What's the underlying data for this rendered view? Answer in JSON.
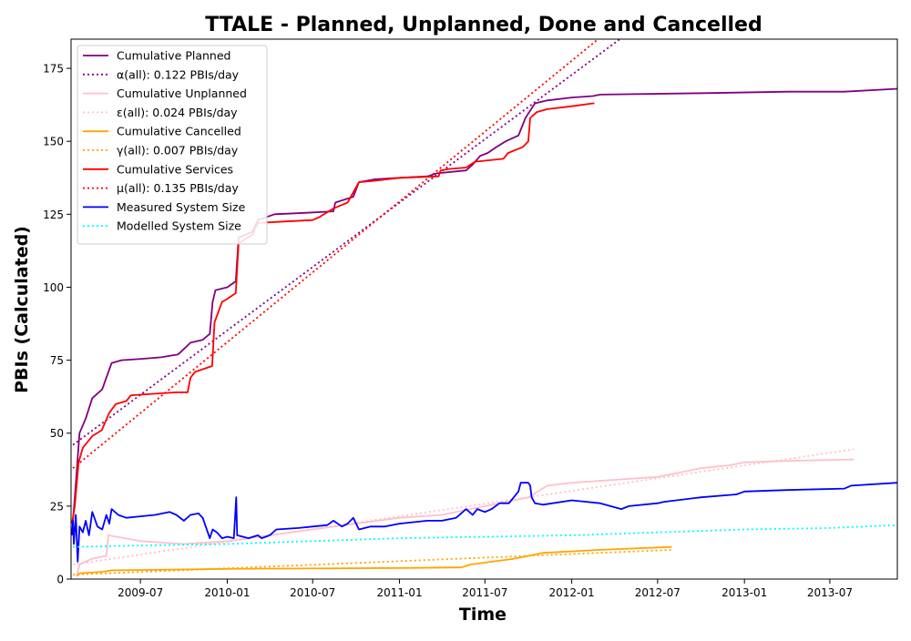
{
  "chart_data": {
    "type": "line",
    "title": "TTALE - Planned, Unplanned, Done  and Cancelled",
    "xlabel": "Time",
    "ylabel": "PBIs (Calculated)",
    "xlim": [
      "2009-02-04",
      "2013-11-21"
    ],
    "ylim": [
      0,
      185
    ],
    "x_ticks": [
      "2009-07",
      "2010-01",
      "2010-07",
      "2011-01",
      "2011-07",
      "2012-01",
      "2012-07",
      "2013-01",
      "2013-07"
    ],
    "y_ticks": [
      0,
      25,
      50,
      75,
      100,
      125,
      150,
      175
    ],
    "grid": false,
    "legend_position": "top-left",
    "series": [
      {
        "name": "Cumulative Planned",
        "color": "#800080",
        "style": "solid",
        "points": [
          [
            "2009-02-08",
            20
          ],
          [
            "2009-02-12",
            28
          ],
          [
            "2009-02-22",
            50
          ],
          [
            "2009-03-07",
            55
          ],
          [
            "2009-03-21",
            62
          ],
          [
            "2009-04-11",
            65
          ],
          [
            "2009-04-22",
            70
          ],
          [
            "2009-05-01",
            74
          ],
          [
            "2009-05-22",
            75
          ],
          [
            "2009-07-07",
            75.5
          ],
          [
            "2009-08-14",
            76
          ],
          [
            "2009-09-19",
            77
          ],
          [
            "2009-10-15",
            81
          ],
          [
            "2009-11-10",
            82
          ],
          [
            "2009-11-25",
            84
          ],
          [
            "2009-12-01",
            95
          ],
          [
            "2009-12-07",
            99
          ],
          [
            "2010-01-01",
            100
          ],
          [
            "2010-01-19",
            102
          ],
          [
            "2010-01-25",
            117
          ],
          [
            "2010-02-23",
            119
          ],
          [
            "2010-03-07",
            123
          ],
          [
            "2010-04-11",
            125
          ],
          [
            "2010-06-19",
            125.5
          ],
          [
            "2010-08-14",
            126
          ],
          [
            "2010-08-18",
            129
          ],
          [
            "2010-09-25",
            131
          ],
          [
            "2010-10-07",
            136
          ],
          [
            "2010-11-10",
            137
          ],
          [
            "2011-01-01",
            137.5
          ],
          [
            "2011-03-01",
            138
          ],
          [
            "2011-03-21",
            139
          ],
          [
            "2011-05-22",
            140
          ],
          [
            "2011-06-05",
            142
          ],
          [
            "2011-06-21",
            145
          ],
          [
            "2011-07-07",
            146
          ],
          [
            "2011-07-25",
            148
          ],
          [
            "2011-08-14",
            150
          ],
          [
            "2011-09-10",
            152
          ],
          [
            "2011-09-25",
            158
          ],
          [
            "2011-10-15",
            163
          ],
          [
            "2011-11-10",
            164
          ],
          [
            "2012-01-01",
            165
          ],
          [
            "2012-02-15",
            165.5
          ],
          [
            "2012-03-01",
            166
          ],
          [
            "2012-10-07",
            166.5
          ],
          [
            "2013-04-03",
            167
          ],
          [
            "2013-08-01",
            167
          ],
          [
            "2013-11-21",
            168
          ]
        ]
      },
      {
        "name": "α(all): 0.122 PBIs/day",
        "color": "#800080",
        "style": "dotted",
        "points": [
          [
            "2009-02-08",
            46
          ],
          [
            "2012-04-12",
            185
          ]
        ]
      },
      {
        "name": "Cumulative Unplanned",
        "color": "#ffc0cb",
        "style": "solid",
        "points": [
          [
            "2009-02-16",
            1
          ],
          [
            "2009-02-22",
            5
          ],
          [
            "2009-03-21",
            7
          ],
          [
            "2009-04-20",
            8
          ],
          [
            "2009-04-24",
            15
          ],
          [
            "2009-07-01",
            13
          ],
          [
            "2009-10-01",
            12
          ],
          [
            "2010-01-01",
            13
          ],
          [
            "2010-04-01",
            15
          ],
          [
            "2010-07-01",
            17
          ],
          [
            "2010-10-01",
            19
          ],
          [
            "2011-01-01",
            21
          ],
          [
            "2011-04-01",
            22
          ],
          [
            "2011-07-01",
            25
          ],
          [
            "2011-10-01",
            28
          ],
          [
            "2011-11-10",
            32
          ],
          [
            "2012-01-01",
            33
          ],
          [
            "2012-04-01",
            34
          ],
          [
            "2012-07-01",
            35
          ],
          [
            "2012-08-01",
            36
          ],
          [
            "2012-10-01",
            38
          ],
          [
            "2012-12-01",
            39
          ],
          [
            "2013-01-01",
            40
          ],
          [
            "2013-04-01",
            40.5
          ],
          [
            "2013-08-21",
            41
          ]
        ]
      },
      {
        "name": "ε(all): 0.024 PBIs/day",
        "color": "#ffc0cb",
        "style": "dotted",
        "points": [
          [
            "2009-02-08",
            5
          ],
          [
            "2013-08-21",
            44.5
          ]
        ]
      },
      {
        "name": "Cumulative Cancelled",
        "color": "#ffa500",
        "style": "solid",
        "points": [
          [
            "2009-02-16",
            1
          ],
          [
            "2009-02-22",
            2
          ],
          [
            "2009-04-11",
            2.5
          ],
          [
            "2009-05-01",
            3
          ],
          [
            "2010-01-01",
            3.5
          ],
          [
            "2011-01-01",
            3.8
          ],
          [
            "2011-05-12",
            4
          ],
          [
            "2011-06-01",
            5
          ],
          [
            "2011-09-01",
            7
          ],
          [
            "2011-11-01",
            9
          ],
          [
            "2012-03-01",
            10
          ],
          [
            "2012-07-31",
            11
          ]
        ]
      },
      {
        "name": "γ(all): 0.007 PBIs/day",
        "color": "#ffa500",
        "style": "dotted",
        "points": [
          [
            "2009-02-08",
            1.5
          ],
          [
            "2012-07-31",
            10
          ]
        ]
      },
      {
        "name": "Cumulative Services",
        "color": "#ff0000",
        "style": "solid",
        "points": [
          [
            "2009-02-06",
            19
          ],
          [
            "2009-02-12",
            25
          ],
          [
            "2009-02-20",
            40
          ],
          [
            "2009-03-01",
            45
          ],
          [
            "2009-03-21",
            49
          ],
          [
            "2009-04-10",
            51
          ],
          [
            "2009-04-26",
            57
          ],
          [
            "2009-05-10",
            60
          ],
          [
            "2009-06-01",
            61
          ],
          [
            "2009-06-11",
            63
          ],
          [
            "2009-09-15",
            64
          ],
          [
            "2009-10-09",
            64
          ],
          [
            "2009-10-15",
            69
          ],
          [
            "2009-10-25",
            71
          ],
          [
            "2009-11-30",
            73
          ],
          [
            "2009-12-05",
            88
          ],
          [
            "2009-12-21",
            95
          ],
          [
            "2010-01-01",
            96
          ],
          [
            "2010-01-19",
            98
          ],
          [
            "2010-01-25",
            115
          ],
          [
            "2010-02-23",
            118
          ],
          [
            "2010-03-07",
            122
          ],
          [
            "2010-05-01",
            122.5
          ],
          [
            "2010-07-01",
            123
          ],
          [
            "2010-07-15",
            124
          ],
          [
            "2010-08-14",
            127
          ],
          [
            "2010-09-13",
            129
          ],
          [
            "2010-10-07",
            136
          ],
          [
            "2010-11-10",
            136.5
          ],
          [
            "2011-01-01",
            137.5
          ],
          [
            "2011-03-25",
            138
          ],
          [
            "2011-03-29",
            140
          ],
          [
            "2011-04-15",
            140.5
          ],
          [
            "2011-05-22",
            141
          ],
          [
            "2011-06-10",
            143
          ],
          [
            "2011-08-09",
            144
          ],
          [
            "2011-08-19",
            146
          ],
          [
            "2011-09-19",
            148
          ],
          [
            "2011-10-01",
            150
          ],
          [
            "2011-10-05",
            158
          ],
          [
            "2011-10-19",
            160
          ],
          [
            "2011-11-10",
            161
          ],
          [
            "2012-01-01",
            162
          ],
          [
            "2012-02-15",
            163
          ],
          [
            "2012-02-18",
            163
          ]
        ]
      },
      {
        "name": "μ(all): 0.135 PBIs/day",
        "color": "#ff0000",
        "style": "dotted",
        "points": [
          [
            "2009-02-08",
            38
          ],
          [
            "2012-02-26",
            185
          ]
        ]
      },
      {
        "name": "Measured System Size",
        "color": "#0000ff",
        "style": "solid",
        "points": [
          [
            "2009-02-06",
            15
          ],
          [
            "2009-02-08",
            20
          ],
          [
            "2009-02-10",
            12
          ],
          [
            "2009-02-14",
            22
          ],
          [
            "2009-02-18",
            6
          ],
          [
            "2009-02-22",
            18
          ],
          [
            "2009-03-01",
            16
          ],
          [
            "2009-03-07",
            20
          ],
          [
            "2009-03-14",
            15
          ],
          [
            "2009-03-21",
            23
          ],
          [
            "2009-04-01",
            18
          ],
          [
            "2009-04-11",
            17
          ],
          [
            "2009-04-20",
            22
          ],
          [
            "2009-04-26",
            19
          ],
          [
            "2009-05-01",
            24
          ],
          [
            "2009-05-15",
            22
          ],
          [
            "2009-06-01",
            21
          ],
          [
            "2009-07-01",
            21.5
          ],
          [
            "2009-08-01",
            22
          ],
          [
            "2009-09-01",
            23
          ],
          [
            "2009-09-15",
            22
          ],
          [
            "2009-10-01",
            20
          ],
          [
            "2009-10-15",
            22
          ],
          [
            "2009-11-01",
            22.5
          ],
          [
            "2009-11-10",
            21
          ],
          [
            "2009-11-25",
            14
          ],
          [
            "2009-12-01",
            17
          ],
          [
            "2009-12-10",
            16
          ],
          [
            "2009-12-21",
            14
          ],
          [
            "2010-01-01",
            14.5
          ],
          [
            "2010-01-15",
            14
          ],
          [
            "2010-01-20",
            28
          ],
          [
            "2010-01-22",
            15
          ],
          [
            "2010-02-15",
            14
          ],
          [
            "2010-03-07",
            15
          ],
          [
            "2010-03-15",
            14
          ],
          [
            "2010-04-01",
            15
          ],
          [
            "2010-04-15",
            17
          ],
          [
            "2010-06-01",
            17.5
          ],
          [
            "2010-07-01",
            18
          ],
          [
            "2010-08-01",
            18.5
          ],
          [
            "2010-08-14",
            20
          ],
          [
            "2010-09-01",
            18
          ],
          [
            "2010-09-13",
            19
          ],
          [
            "2010-09-25",
            21
          ],
          [
            "2010-10-07",
            17
          ],
          [
            "2010-11-01",
            18
          ],
          [
            "2010-12-01",
            18
          ],
          [
            "2011-01-01",
            19
          ],
          [
            "2011-03-01",
            20
          ],
          [
            "2011-04-01",
            20
          ],
          [
            "2011-05-01",
            21
          ],
          [
            "2011-05-22",
            24
          ],
          [
            "2011-06-05",
            22
          ],
          [
            "2011-06-15",
            24
          ],
          [
            "2011-07-01",
            23
          ],
          [
            "2011-07-15",
            24
          ],
          [
            "2011-08-01",
            26
          ],
          [
            "2011-08-21",
            26
          ],
          [
            "2011-09-10",
            30
          ],
          [
            "2011-09-15",
            33
          ],
          [
            "2011-10-01",
            33
          ],
          [
            "2011-10-05",
            32
          ],
          [
            "2011-10-08",
            28
          ],
          [
            "2011-10-15",
            26
          ],
          [
            "2011-11-01",
            25.5
          ],
          [
            "2012-01-01",
            27
          ],
          [
            "2012-03-01",
            26
          ],
          [
            "2012-04-15",
            24
          ],
          [
            "2012-05-01",
            25
          ],
          [
            "2012-07-01",
            26
          ],
          [
            "2012-07-15",
            26.5
          ],
          [
            "2012-10-01",
            28
          ],
          [
            "2012-12-15",
            29
          ],
          [
            "2013-01-01",
            30
          ],
          [
            "2013-04-01",
            30.5
          ],
          [
            "2013-08-01",
            31
          ],
          [
            "2013-08-15",
            32
          ],
          [
            "2013-11-21",
            33
          ]
        ]
      },
      {
        "name": "Modelled System Size",
        "color": "#00ffff",
        "style": "dotted",
        "points": [
          [
            "2009-02-08",
            11
          ],
          [
            "2009-07-01",
            11.5
          ],
          [
            "2010-01-01",
            12
          ],
          [
            "2010-07-01",
            13
          ],
          [
            "2011-01-01",
            14
          ],
          [
            "2011-07-01",
            14.5
          ],
          [
            "2012-01-01",
            15
          ],
          [
            "2012-07-01",
            16
          ],
          [
            "2013-01-01",
            17
          ],
          [
            "2013-07-01",
            17.5
          ],
          [
            "2013-11-21",
            18.5
          ]
        ]
      }
    ]
  }
}
